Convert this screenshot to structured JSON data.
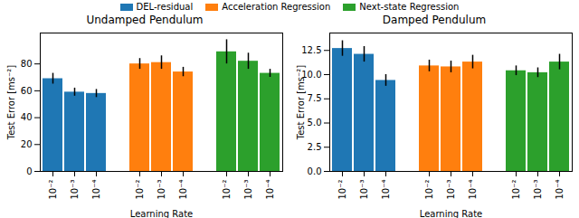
{
  "chart_data": [
    {
      "type": "bar",
      "title": "Undamped Pendulum",
      "x_label": "Learning Rate",
      "y_label": "Test Error [ms⁻²]",
      "categories": [
        "10⁻²",
        "10⁻³",
        "10⁻⁴"
      ],
      "series": [
        {
          "name": "DEL-residual",
          "color": "#1f77b4",
          "values": [
            69,
            59,
            58
          ],
          "errors": [
            4,
            3,
            3
          ]
        },
        {
          "name": "Acceleration Regression",
          "color": "#ff7f0e",
          "values": [
            80,
            81,
            74
          ],
          "errors": [
            4,
            5,
            3.5
          ]
        },
        {
          "name": "Next-state Regression",
          "color": "#2ca02c",
          "values": [
            89,
            82,
            73
          ],
          "errors": [
            9,
            6,
            3
          ]
        }
      ],
      "ylim": [
        0,
        103
      ],
      "yticks": [
        0,
        20,
        40,
        60,
        80
      ],
      "legend": "top",
      "grid": false
    },
    {
      "type": "bar",
      "title": "Damped Pendulum",
      "x_label": "Learning Rate",
      "y_label": "Test Error [ms⁻²]",
      "categories": [
        "10⁻²",
        "10⁻³",
        "10⁻⁴"
      ],
      "series": [
        {
          "name": "DEL-residual",
          "color": "#1f77b4",
          "values": [
            12.7,
            12.1,
            9.4
          ],
          "errors": [
            0.8,
            0.8,
            0.6
          ]
        },
        {
          "name": "Acceleration Regression",
          "color": "#ff7f0e",
          "values": [
            10.9,
            10.8,
            11.3
          ],
          "errors": [
            0.6,
            0.6,
            0.7
          ]
        },
        {
          "name": "Next-state Regression",
          "color": "#2ca02c",
          "values": [
            10.4,
            10.2,
            11.3
          ],
          "errors": [
            0.5,
            0.5,
            0.8
          ]
        }
      ],
      "ylim": [
        0,
        14.3
      ],
      "yticks": [
        {
          "value": 0,
          "label": "0.0"
        },
        2.5,
        {
          "value": 5,
          "label": "5.0"
        },
        7.5,
        {
          "value": 10,
          "label": "10.0"
        },
        12.5
      ],
      "grid": false
    }
  ]
}
